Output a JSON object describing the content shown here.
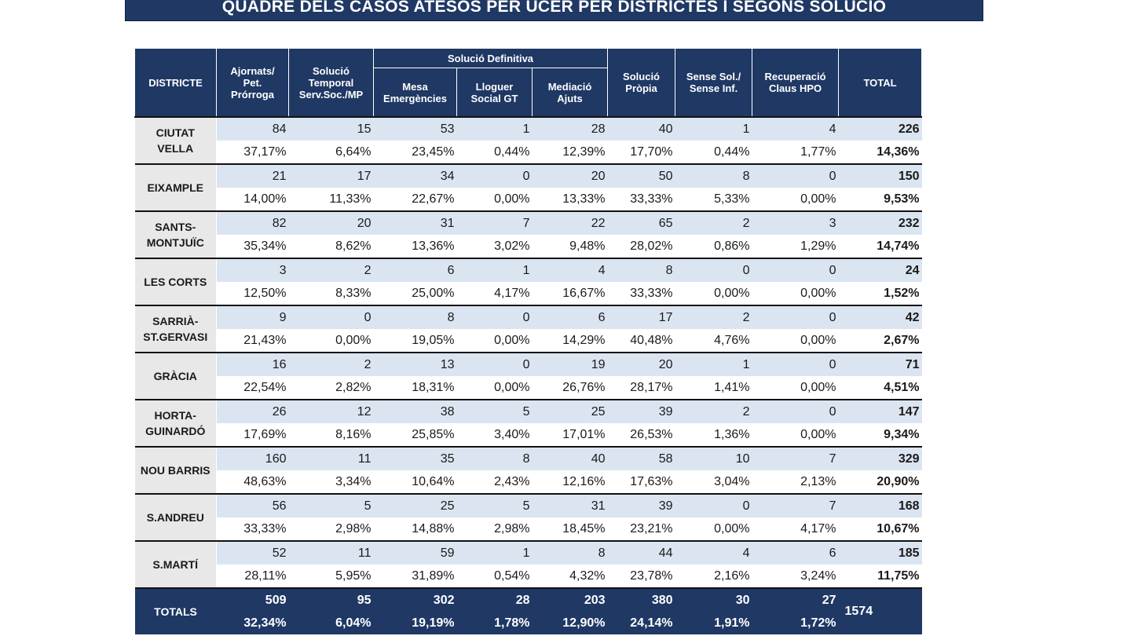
{
  "title": "QUADRE DELS CASOS ATESOS PER UCER PER DISTRICTES I SEGONS SOLUCIÓ",
  "headers": {
    "district": "DISTRICTE",
    "ajornats": [
      "Ajornats/",
      "Pet.",
      "Prórroga"
    ],
    "temporal": [
      "Solució",
      "Temporal",
      "Serv.Soc./MP"
    ],
    "definitiva": "Solució Definitiva",
    "mesa": [
      "Mesa",
      "Emergències"
    ],
    "lloguer": [
      "Lloguer",
      "Social GT"
    ],
    "mediacio": [
      "Mediació",
      "Ajuts"
    ],
    "propia": [
      "Solució",
      "Pròpia"
    ],
    "sense": [
      "Sense Sol./",
      "Sense Inf."
    ],
    "recuperacio": [
      "Recuperació",
      "Claus HPO"
    ],
    "total": "TOTAL"
  },
  "rows": [
    {
      "district": [
        "CIUTAT",
        "VELLA"
      ],
      "counts": [
        "84",
        "15",
        "53",
        "1",
        "28",
        "40",
        "1",
        "4"
      ],
      "total": "226",
      "pcts": [
        "37,17%",
        "6,64%",
        "23,45%",
        "0,44%",
        "12,39%",
        "17,70%",
        "0,44%",
        "1,77%"
      ],
      "total_pct": "14,36%"
    },
    {
      "district": [
        "EIXAMPLE"
      ],
      "counts": [
        "21",
        "17",
        "34",
        "0",
        "20",
        "50",
        "8",
        "0"
      ],
      "total": "150",
      "pcts": [
        "14,00%",
        "11,33%",
        "22,67%",
        "0,00%",
        "13,33%",
        "33,33%",
        "5,33%",
        "0,00%"
      ],
      "total_pct": "9,53%"
    },
    {
      "district": [
        "SANTS-",
        "MONTJUÏC"
      ],
      "counts": [
        "82",
        "20",
        "31",
        "7",
        "22",
        "65",
        "2",
        "3"
      ],
      "total": "232",
      "pcts": [
        "35,34%",
        "8,62%",
        "13,36%",
        "3,02%",
        "9,48%",
        "28,02%",
        "0,86%",
        "1,29%"
      ],
      "total_pct": "14,74%"
    },
    {
      "district": [
        "LES CORTS"
      ],
      "counts": [
        "3",
        "2",
        "6",
        "1",
        "4",
        "8",
        "0",
        "0"
      ],
      "total": "24",
      "pcts": [
        "12,50%",
        "8,33%",
        "25,00%",
        "4,17%",
        "16,67%",
        "33,33%",
        "0,00%",
        "0,00%"
      ],
      "total_pct": "1,52%"
    },
    {
      "district": [
        "SARRIÀ-",
        "ST.GERVASI"
      ],
      "counts": [
        "9",
        "0",
        "8",
        "0",
        "6",
        "17",
        "2",
        "0"
      ],
      "total": "42",
      "pcts": [
        "21,43%",
        "0,00%",
        "19,05%",
        "0,00%",
        "14,29%",
        "40,48%",
        "4,76%",
        "0,00%"
      ],
      "total_pct": "2,67%"
    },
    {
      "district": [
        "GRÀCIA"
      ],
      "counts": [
        "16",
        "2",
        "13",
        "0",
        "19",
        "20",
        "1",
        "0"
      ],
      "total": "71",
      "pcts": [
        "22,54%",
        "2,82%",
        "18,31%",
        "0,00%",
        "26,76%",
        "28,17%",
        "1,41%",
        "0,00%"
      ],
      "total_pct": "4,51%"
    },
    {
      "district": [
        "HORTA-",
        "GUINARDÓ"
      ],
      "counts": [
        "26",
        "12",
        "38",
        "5",
        "25",
        "39",
        "2",
        "0"
      ],
      "total": "147",
      "pcts": [
        "17,69%",
        "8,16%",
        "25,85%",
        "3,40%",
        "17,01%",
        "26,53%",
        "1,36%",
        "0,00%"
      ],
      "total_pct": "9,34%"
    },
    {
      "district": [
        "NOU BARRIS"
      ],
      "counts": [
        "160",
        "11",
        "35",
        "8",
        "40",
        "58",
        "10",
        "7"
      ],
      "total": "329",
      "pcts": [
        "48,63%",
        "3,34%",
        "10,64%",
        "2,43%",
        "12,16%",
        "17,63%",
        "3,04%",
        "2,13%"
      ],
      "total_pct": "20,90%"
    },
    {
      "district": [
        "S.ANDREU"
      ],
      "counts": [
        "56",
        "5",
        "25",
        "5",
        "31",
        "39",
        "0",
        "7"
      ],
      "total": "168",
      "pcts": [
        "33,33%",
        "2,98%",
        "14,88%",
        "2,98%",
        "18,45%",
        "23,21%",
        "0,00%",
        "4,17%"
      ],
      "total_pct": "10,67%"
    },
    {
      "district": [
        "S.MARTÍ"
      ],
      "counts": [
        "52",
        "11",
        "59",
        "1",
        "8",
        "44",
        "4",
        "6"
      ],
      "total": "185",
      "pcts": [
        "28,11%",
        "5,95%",
        "31,89%",
        "0,54%",
        "4,32%",
        "23,78%",
        "2,16%",
        "3,24%"
      ],
      "total_pct": "11,75%"
    }
  ],
  "totals": {
    "label": "TOTALS",
    "counts": [
      "509",
      "95",
      "302",
      "28",
      "203",
      "380",
      "30",
      "27"
    ],
    "pcts": [
      "32,34%",
      "6,04%",
      "19,19%",
      "1,78%",
      "12,90%",
      "24,14%",
      "1,91%",
      "1,72%"
    ],
    "grand_total": "1574"
  },
  "colors": {
    "header_bg": "#1f3864",
    "count_row_bg": "#dbe5f1",
    "district_bg": "#e8e8e8"
  }
}
